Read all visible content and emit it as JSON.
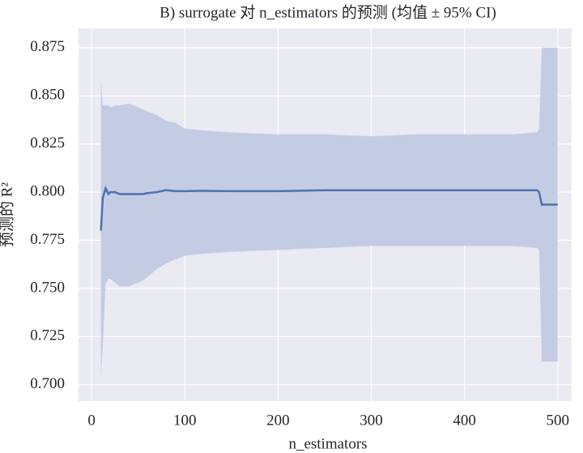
{
  "chart_data": {
    "type": "line",
    "title": "B) surrogate 对 n_estimators 的预测 (均值 ± 95% CI)",
    "x_label": "n_estimators",
    "y_label": "预测的 R²",
    "x": [
      10,
      12,
      15,
      18,
      20,
      25,
      30,
      40,
      55,
      60,
      70,
      80,
      90,
      100,
      120,
      150,
      200,
      250,
      300,
      350,
      400,
      450,
      478,
      480,
      483,
      500
    ],
    "series": [
      {
        "color": "#4c72b0",
        "band_color": "#c4cce4",
        "values": [
          0.78,
          0.797,
          0.802,
          0.799,
          0.8,
          0.8,
          0.799,
          0.799,
          0.799,
          0.7995,
          0.8,
          0.801,
          0.8005,
          0.8005,
          0.8007,
          0.8005,
          0.8005,
          0.801,
          0.801,
          0.801,
          0.801,
          0.801,
          0.801,
          0.8,
          0.7935,
          0.7935
        ],
        "lower": [
          0.705,
          0.72,
          0.752,
          0.755,
          0.755,
          0.753,
          0.751,
          0.751,
          0.754,
          0.756,
          0.76,
          0.763,
          0.765,
          0.767,
          0.768,
          0.769,
          0.77,
          0.771,
          0.772,
          0.772,
          0.772,
          0.772,
          0.771,
          0.77,
          0.712,
          0.712
        ],
        "upper": [
          0.859,
          0.845,
          0.845,
          0.845,
          0.844,
          0.845,
          0.845,
          0.846,
          0.843,
          0.842,
          0.84,
          0.837,
          0.836,
          0.833,
          0.832,
          0.831,
          0.83,
          0.83,
          0.829,
          0.83,
          0.83,
          0.83,
          0.831,
          0.833,
          0.875,
          0.875
        ]
      }
    ],
    "xlim": [
      -14,
      515
    ],
    "ylim": [
      0.6915,
      0.885
    ],
    "xticks": [
      0,
      100,
      200,
      300,
      400,
      500
    ],
    "yticks": [
      {
        "value": 0.7,
        "label": "0.700"
      },
      0.725,
      {
        "value": 0.75,
        "label": "0.750"
      },
      0.775,
      {
        "value": 0.8,
        "label": "0.800"
      },
      0.825,
      {
        "value": 0.85,
        "label": "0.850"
      },
      0.875
    ],
    "grid": true,
    "background": "#eaeaf2"
  }
}
